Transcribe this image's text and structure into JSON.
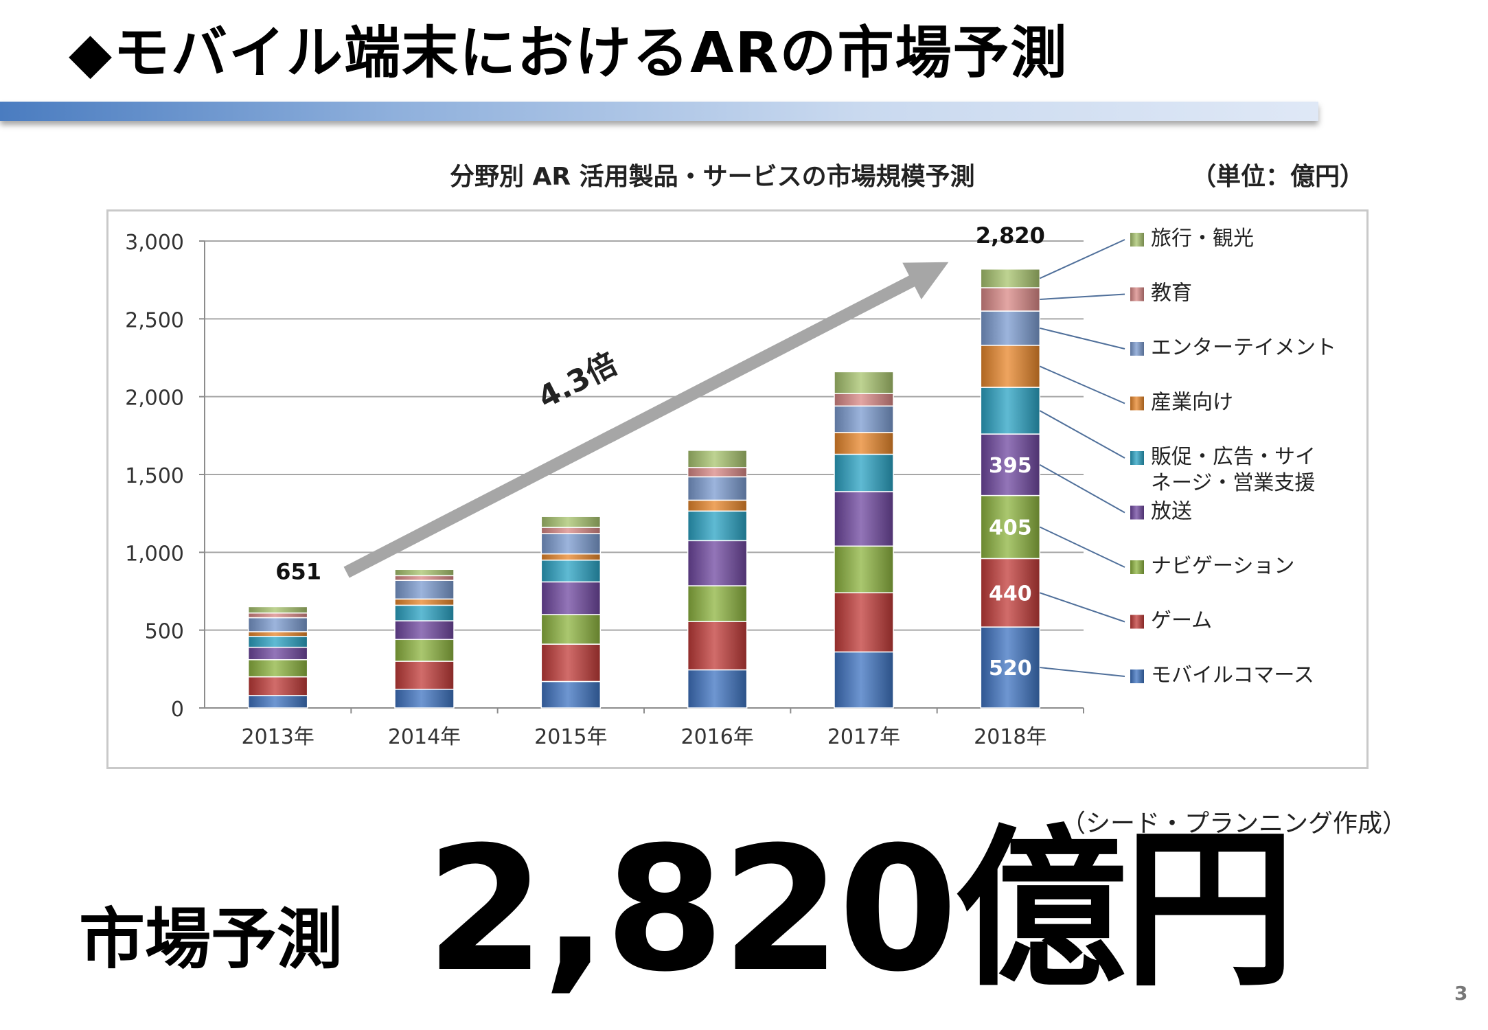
{
  "slide": {
    "title": "◆モバイル端末におけるARの市場予測",
    "source_note": "（シード・プランニング作成）",
    "market_label": "市場予測",
    "market_value": "2,820億円",
    "page_number": "3"
  },
  "chart_data": {
    "type": "bar",
    "stacked": true,
    "title": "分野別 AR 活用製品・サービスの市場規模予測",
    "unit_label": "（単位：億円）",
    "categories": [
      "2013年",
      "2014年",
      "2015年",
      "2016年",
      "2017年",
      "2018年"
    ],
    "ylim": [
      0,
      3000
    ],
    "yticks": [
      "0",
      "500",
      "1,000",
      "1,500",
      "2,000",
      "2,500",
      "3,000"
    ],
    "grid": true,
    "legend_position": "right",
    "series": [
      {
        "name": "モバイルコマース",
        "color": "#3e73c1",
        "values": [
          80,
          120,
          170,
          245,
          360,
          520
        ]
      },
      {
        "name": "ゲーム",
        "color": "#c13b38",
        "values": [
          120,
          180,
          240,
          310,
          380,
          440
        ]
      },
      {
        "name": "ナビゲーション",
        "color": "#8db43f",
        "values": [
          110,
          140,
          190,
          230,
          300,
          405
        ]
      },
      {
        "name": "放送",
        "color": "#6f47a0",
        "values": [
          80,
          120,
          210,
          290,
          350,
          395
        ]
      },
      {
        "name": "販促・広告・サイネージ・営業支援",
        "color": "#2aa3c4",
        "values": [
          70,
          100,
          140,
          190,
          240,
          300
        ]
      },
      {
        "name": "産業向け",
        "color": "#e8862a",
        "values": [
          30,
          40,
          40,
          70,
          140,
          270
        ]
      },
      {
        "name": "エンターテイメント",
        "color": "#7b9bd0",
        "values": [
          90,
          120,
          130,
          150,
          170,
          220
        ]
      },
      {
        "name": "教育",
        "color": "#d98886",
        "values": [
          30,
          30,
          40,
          60,
          80,
          150
        ]
      },
      {
        "name": "旅行・観光",
        "color": "#a8c46e",
        "values": [
          41,
          40,
          70,
          110,
          140,
          120
        ]
      }
    ],
    "annotations": {
      "first_total": "651",
      "last_total": "2,820",
      "growth": "4.3倍"
    }
  }
}
